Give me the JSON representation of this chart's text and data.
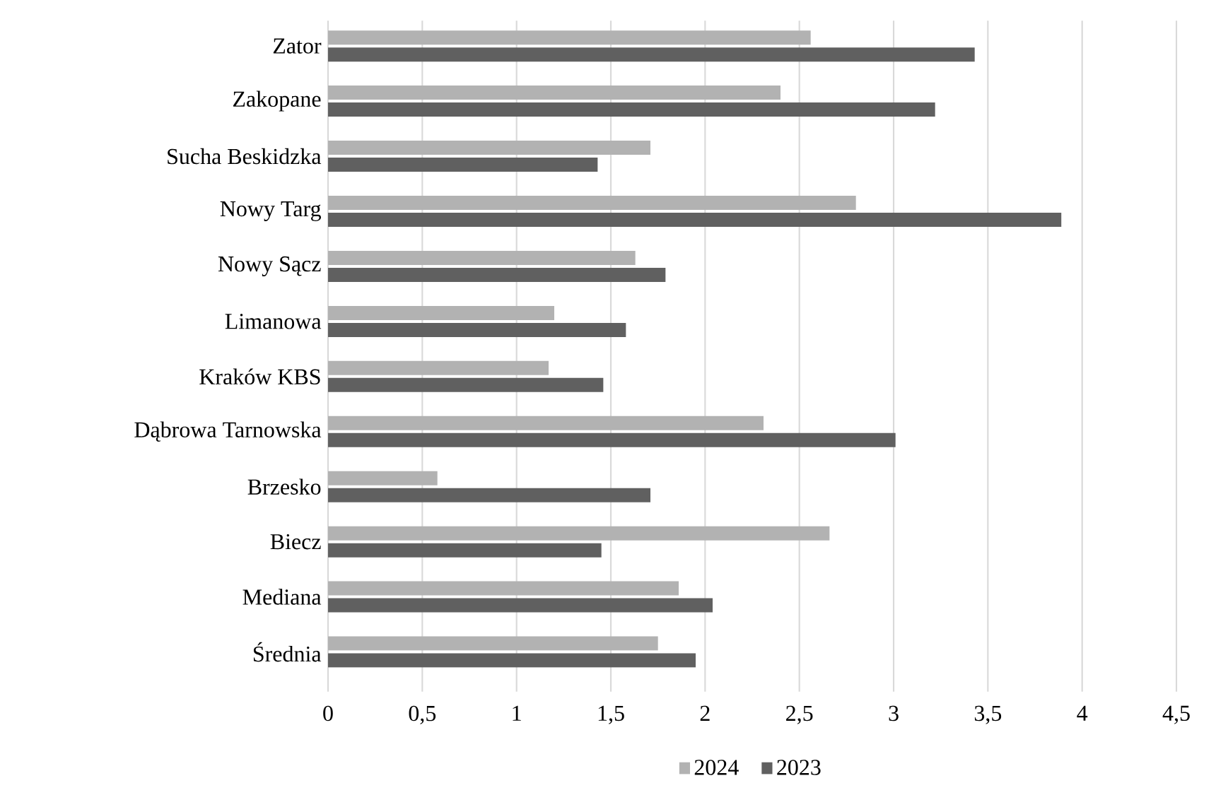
{
  "chart_data": {
    "type": "bar",
    "orientation": "horizontal",
    "categories": [
      "Zator",
      "Zakopane",
      "Sucha Beskidzka",
      "Nowy Targ",
      "Nowy Sącz",
      "Limanowa",
      "Kraków KBS",
      "Dąbrowa Tarnowska",
      "Brzesko",
      "Biecz",
      "Mediana",
      "Średnia"
    ],
    "series": [
      {
        "name": "2024",
        "color": "#b2b2b2",
        "values": [
          2.56,
          2.4,
          1.71,
          2.8,
          1.63,
          1.2,
          1.17,
          2.31,
          0.58,
          2.66,
          1.86,
          1.75
        ]
      },
      {
        "name": "2023",
        "color": "#606060",
        "values": [
          3.43,
          3.22,
          1.43,
          3.89,
          1.79,
          1.58,
          1.46,
          3.01,
          1.71,
          1.45,
          2.04,
          1.95
        ]
      }
    ],
    "xlim": [
      0,
      4.5
    ],
    "xticks": [
      0,
      {
        "value": 0.5,
        "label": "0,5"
      },
      1,
      {
        "value": 1.5,
        "label": "1,5"
      },
      2,
      {
        "value": 2.5,
        "label": "2,5"
      },
      3,
      {
        "value": 3.5,
        "label": "3,5"
      },
      4,
      {
        "value": 4.5,
        "label": "4,5"
      }
    ],
    "grid": "x",
    "legend": "bottom"
  }
}
